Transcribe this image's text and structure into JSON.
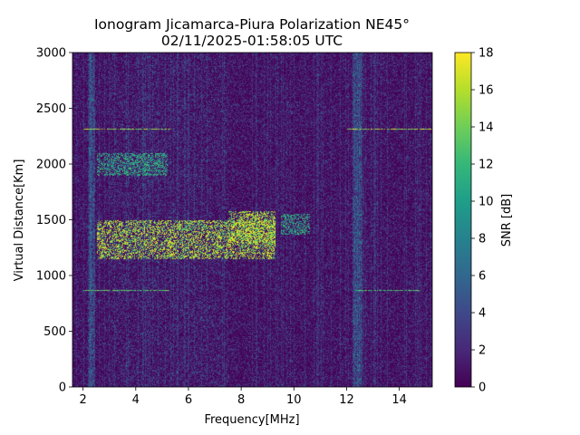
{
  "chart_data": {
    "type": "heatmap",
    "title": "Ionogram Jicamarca-Piura Polarization NE45°",
    "subtitle": "02/11/2025-01:58:05 UTC",
    "xlabel": "Frequency[MHz]",
    "ylabel": "Virtual Distance[Km]",
    "xlim": [
      1.6,
      15.25
    ],
    "ylim": [
      0,
      3000
    ],
    "x_ticks": [
      "2",
      "4",
      "6",
      "8",
      "10",
      "12",
      "14"
    ],
    "y_ticks": [
      "0",
      "500",
      "1000",
      "1500",
      "2000",
      "2500",
      "3000"
    ],
    "colorbar": {
      "label": "SNR [dB]",
      "colormap": "viridis",
      "range": [
        0,
        18
      ],
      "ticks": [
        "0",
        "2",
        "4",
        "6",
        "8",
        "10",
        "12",
        "14",
        "16",
        "18"
      ]
    },
    "colormap_colors": [
      "#440154",
      "#482878",
      "#3e4989",
      "#31688e",
      "#26828e",
      "#1f9e89",
      "#35b779",
      "#6ece58",
      "#b5de2b",
      "#fde725"
    ],
    "features": [
      {
        "name": "F-layer echo",
        "freq_range_mhz": [
          2.5,
          9.3
        ],
        "virtual_distance_km": [
          1150,
          1500
        ],
        "snr_db": 17
      },
      {
        "name": "F-layer echo high",
        "freq_range_mhz": [
          7.5,
          9.3
        ],
        "virtual_distance_km": [
          1300,
          1580
        ],
        "snr_db": 17
      },
      {
        "name": "upper trace",
        "freq_range_mhz": [
          9.5,
          10.6
        ],
        "virtual_distance_km": [
          1370,
          1560
        ],
        "snr_db": 12
      },
      {
        "name": "second hop echo",
        "freq_range_mhz": [
          2.5,
          5.2
        ],
        "virtual_distance_km": [
          1900,
          2100
        ],
        "snr_db": 12
      },
      {
        "name": "interference line",
        "freq_range_mhz": [
          2.0,
          5.3
        ],
        "virtual_distance_km": [
          2315,
          2325
        ],
        "snr_db": 17
      },
      {
        "name": "interference line",
        "freq_range_mhz": [
          12.0,
          15.25
        ],
        "virtual_distance_km": [
          2315,
          2325
        ],
        "snr_db": 17
      },
      {
        "name": "interference line",
        "freq_range_mhz": [
          2.0,
          5.3
        ],
        "virtual_distance_km": [
          862,
          872
        ],
        "snr_db": 14
      },
      {
        "name": "interference line",
        "freq_range_mhz": [
          12.3,
          14.8
        ],
        "virtual_distance_km": [
          862,
          872
        ],
        "snr_db": 14
      }
    ]
  }
}
